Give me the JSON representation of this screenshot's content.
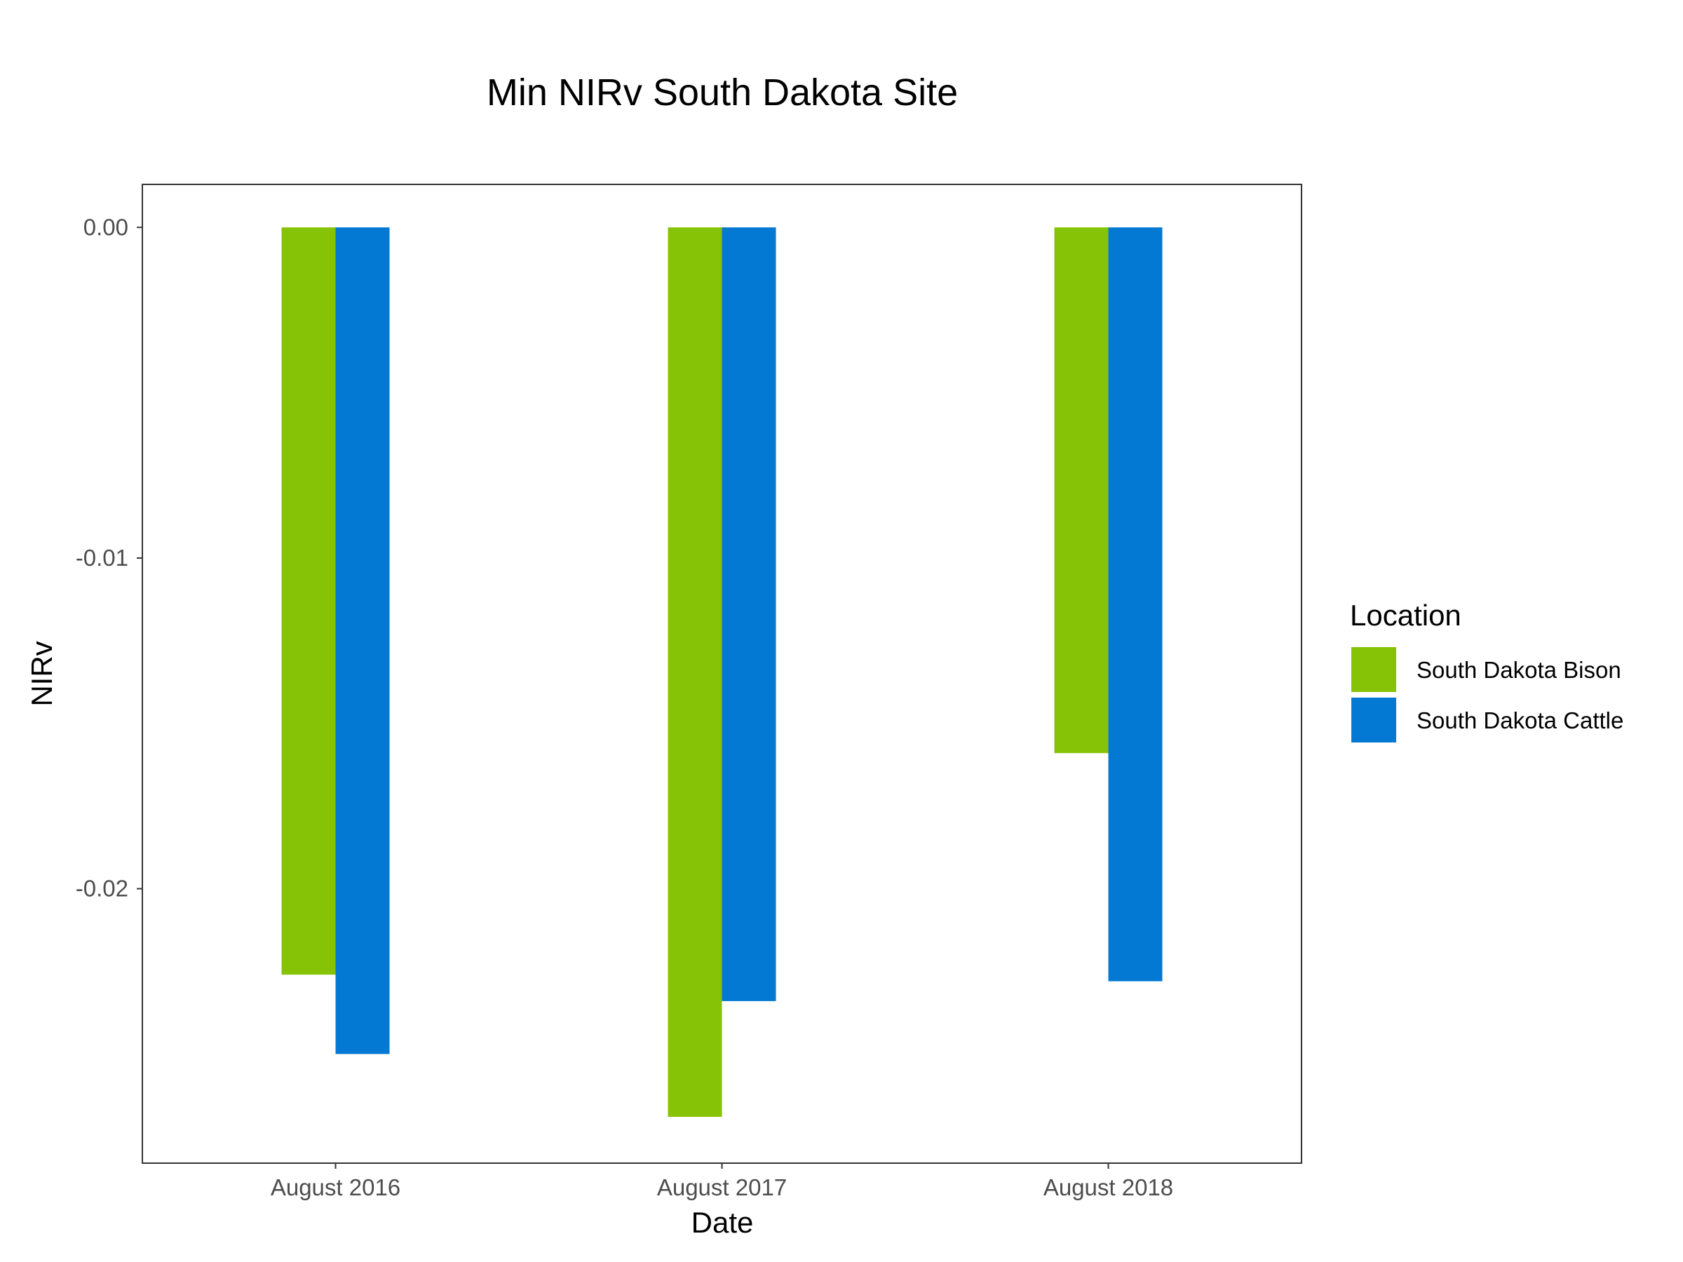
{
  "chart_data": {
    "type": "bar",
    "title": "Min NIRv South Dakota Site",
    "xlabel": "Date",
    "ylabel": "NIRv",
    "categories": [
      "August 2016",
      "August 2017",
      "August 2018"
    ],
    "series": [
      {
        "name": "South Dakota Bison",
        "color": "#86c306",
        "values": [
          -0.0226,
          -0.0269,
          -0.0159
        ]
      },
      {
        "name": "South Dakota Cattle",
        "color": "#0479d4",
        "values": [
          -0.025,
          -0.0234,
          -0.0228
        ]
      }
    ],
    "yticks": [
      0.0,
      -0.01,
      -0.02
    ],
    "ytick_labels": [
      "0.00",
      "-0.01",
      "-0.02"
    ],
    "ylim": [
      -0.0283,
      0.0013
    ],
    "grid": false,
    "legend": {
      "title": "Location",
      "placement": "right"
    }
  }
}
